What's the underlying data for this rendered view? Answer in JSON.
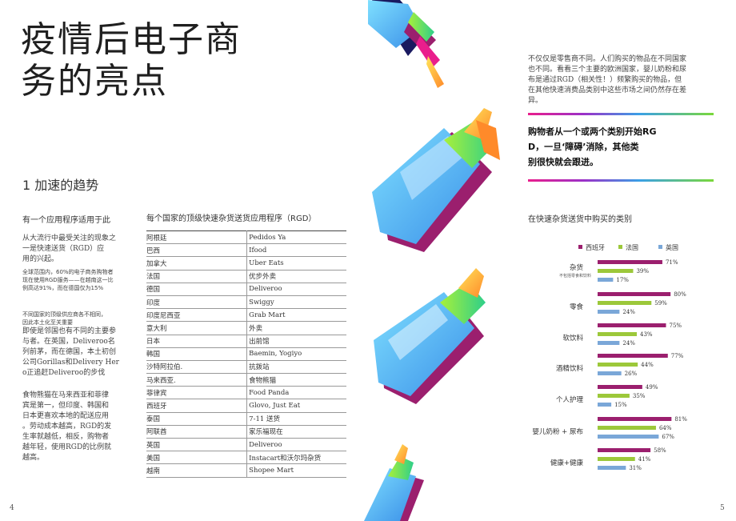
{
  "title": [
    "疫情后电子商",
    "务的亮点"
  ],
  "section": {
    "heading": "1 加速的趋势"
  },
  "left_col": {
    "subhead": "有一个应用程序适用于此",
    "para1": [
      "从大流行中最受关注的现象之",
      "一是快速送货（RGD）应",
      "用的兴起。"
    ],
    "small1": [
      "全球范围内，60%的电子商务购物者",
      "现在使用RGD服务——在越南这一比",
      "例高达91%，而在德国仅为15%"
    ],
    "small2": [
      "不同国家的顶级供应商各不相同，",
      "因此本土化至关重要"
    ],
    "para2": [
      "即使是邻国也有不同的主要参",
      "与者。在英国，Deliveroo名",
      "列前茅，而在德国，本土初创",
      "公司Gorillas和Delivery Her",
      "o正追赶Deliveroo的步伐"
    ],
    "para3": [
      "食物熊猫在马来西亚和菲律",
      "宾是第一，但印度、韩国和",
      "日本更喜欢本地的配送应用",
      "。劳动成本越高，RGD的发",
      "生率就越低，相反，购物者",
      "越年轻，使用RGD的比例就",
      "越高。"
    ]
  },
  "table": {
    "heading": "每个国家的顶级快速杂货送货应用程序（RGD）",
    "rows": [
      [
        "阿根廷",
        "Pedidos Ya"
      ],
      [
        "巴西",
        "Ifood"
      ],
      [
        "加拿大",
        "Uber Eats"
      ],
      [
        "法国",
        "优步外卖"
      ],
      [
        "德国",
        "Deliveroo"
      ],
      [
        "印度",
        "Swiggy"
      ],
      [
        "印度尼西亚",
        "Grab Mart"
      ],
      [
        "意大利",
        "外卖"
      ],
      [
        "日本",
        "出前馆"
      ],
      [
        "韩国",
        "Baemin, Yogiyo"
      ],
      [
        "沙特阿拉伯.",
        "抗拨站"
      ],
      [
        "马来西亚.",
        "食物熊猫"
      ],
      [
        "菲律宾",
        "Food Panda"
      ],
      [
        "西班牙",
        "Glovo, Just Eat"
      ],
      [
        "泰国",
        "7-11 送货"
      ],
      [
        "阿联酋",
        "家乐福现在"
      ],
      [
        "英国",
        "Deliveroo"
      ],
      [
        "美国",
        "Instacart和沃尔玛杂货"
      ],
      [
        "越南",
        "Shopee Mart"
      ]
    ]
  },
  "right_col": {
    "intro": [
      "不仅仅是零售商不同。人们购买的物品在不同国家",
      "也不同。看看三个主要的欧洲国家，婴儿奶粉和尿",
      "布是通过RGD（相关性！）频繁购买的物品，但",
      "在其他快速消费品类别中这些市场之间仍然存在差",
      "异。"
    ],
    "quote": [
      "购物者从一个或两个类别开始RG",
      "D，一旦‘障碍’消除，其他类",
      "别很快就会跟进。"
    ],
    "chart_heading": "在快速杂货送货中购买的类别"
  },
  "chart_data": {
    "type": "bar",
    "orientation": "horizontal",
    "categories": [
      "杂货",
      "零食",
      "软饮料",
      "酒精饮料",
      "个人护理",
      "婴儿奶粉 + 尿布",
      "健康+健康"
    ],
    "category_notes": [
      "不包括零食和饮料",
      "",
      "",
      "",
      "",
      "",
      ""
    ],
    "series": [
      {
        "name": "西班牙",
        "color": "#9b1f6e",
        "values": [
          71,
          80,
          75,
          77,
          49,
          81,
          58
        ]
      },
      {
        "name": "法国",
        "color": "#9cc83a",
        "values": [
          39,
          59,
          43,
          44,
          35,
          64,
          41
        ]
      },
      {
        "name": "英国",
        "color": "#7aa7d8",
        "values": [
          17,
          24,
          24,
          26,
          15,
          67,
          31
        ]
      }
    ],
    "value_suffix": "%",
    "legend": "top"
  },
  "pages": {
    "left": "4",
    "right": "5"
  }
}
